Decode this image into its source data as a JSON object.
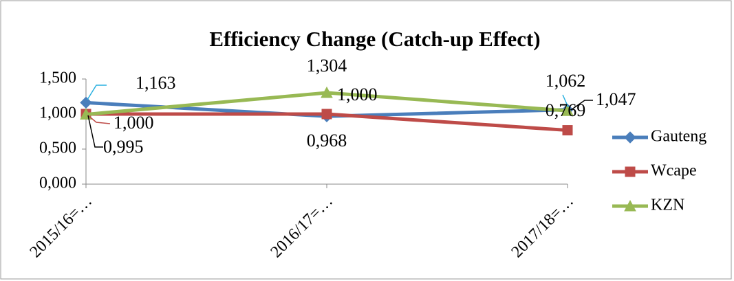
{
  "chart_data": {
    "type": "line",
    "title": "Efficiency Change (Catch-up Effect)",
    "categories": [
      "2015/16=…",
      "2016/17=…",
      "2017/18=…"
    ],
    "ylim": [
      0,
      1.5
    ],
    "yticks": [
      {
        "value": 0,
        "label": "0,000"
      },
      {
        "value": 0.5,
        "label": "0,500"
      },
      {
        "value": 1,
        "label": "1,000"
      },
      {
        "value": 1.5,
        "label": "1,500"
      }
    ],
    "legend": "right",
    "series": [
      {
        "name": "Gauteng",
        "color": "#4a7ebb",
        "marker": "diamond",
        "values": [
          1.163,
          0.968,
          1.062
        ],
        "value_labels": [
          "1,163",
          "0,968",
          "1,062"
        ]
      },
      {
        "name": "Wcape",
        "color": "#be4b48",
        "marker": "square",
        "values": [
          1.0,
          1.0,
          0.769
        ],
        "value_labels": [
          "1,000",
          "1,000",
          "0,769"
        ]
      },
      {
        "name": "KZN",
        "color": "#98b954",
        "marker": "triangle",
        "values": [
          0.995,
          1.304,
          1.047
        ],
        "value_labels": [
          "0,995",
          "1,304",
          "1,047"
        ]
      }
    ]
  }
}
